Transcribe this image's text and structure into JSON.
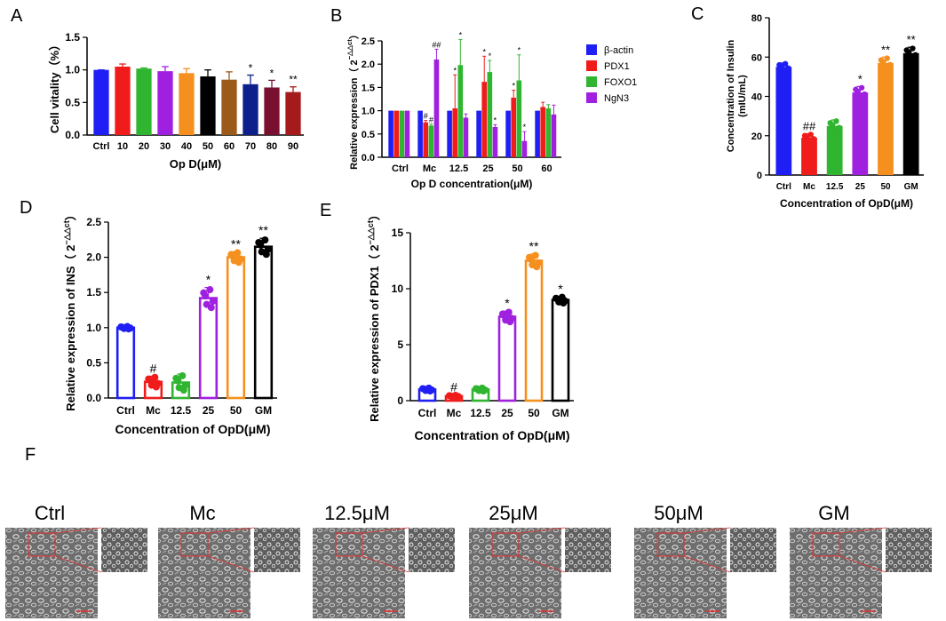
{
  "panel_letters": {
    "A": "A",
    "B": "B",
    "C": "C",
    "D": "D",
    "E": "E",
    "F": "F"
  },
  "colors": {
    "blue": "#1f1ff5",
    "red": "#f01c1c",
    "green": "#2fb52f",
    "purple": "#a020e0",
    "black": "#000000",
    "brown": "#9b5a1a",
    "navy": "#0d1f8a",
    "maroon": "#7a1030",
    "darkred": "#a51a1a",
    "orange": "#f5901e",
    "axis": "#000000"
  },
  "chart_data": [
    {
      "id": "A",
      "type": "bar",
      "title": "",
      "xlabel": "Op D(μM)",
      "ylabel": "Cell vitality（%）",
      "ylim": [
        0,
        1.5
      ],
      "yticks": [
        "0.0",
        "0.5",
        "1.0",
        "1.5"
      ],
      "categories": [
        "Ctrl",
        "10",
        "20",
        "30",
        "40",
        "50",
        "60",
        "70",
        "80",
        "90"
      ],
      "values": [
        1.0,
        1.05,
        1.02,
        0.98,
        0.95,
        0.9,
        0.85,
        0.78,
        0.73,
        0.66
      ],
      "errors": [
        0.0,
        0.04,
        0.01,
        0.07,
        0.07,
        0.1,
        0.12,
        0.14,
        0.11,
        0.08
      ],
      "bar_colors": [
        "blue",
        "red",
        "green",
        "purple",
        "orange",
        "black",
        "brown",
        "navy",
        "maroon",
        "darkred"
      ],
      "annotations": [
        "",
        "",
        "",
        "",
        "",
        "",
        "",
        "*",
        "*",
        "**"
      ]
    },
    {
      "id": "B",
      "type": "bar",
      "title": "",
      "xlabel": "Op D concentration(μM)",
      "ylabel": "Relative expression（2⁻△△ct）",
      "ylabel_main": "Relative expression（ 2",
      "ylabel_sup": "−△△ct",
      "ylabel_close": "）",
      "ylim": [
        0,
        2.5
      ],
      "yticks": [
        "0.0",
        "0.5",
        "1.0",
        "1.5",
        "2.0",
        "2.5"
      ],
      "categories": [
        "Ctrl",
        "Mc",
        "12.5",
        "25",
        "50",
        "60"
      ],
      "series": [
        {
          "name": "β-actin",
          "color": "blue",
          "values": [
            1,
            1,
            1,
            1,
            1,
            1
          ],
          "errors": [
            0,
            0,
            0,
            0,
            0,
            0
          ],
          "annotations": [
            "",
            "",
            "",
            "",
            "",
            ""
          ]
        },
        {
          "name": "PDX1",
          "color": "red",
          "values": [
            1,
            0.75,
            1.05,
            1.62,
            1.28,
            1.08
          ],
          "errors": [
            0,
            0.04,
            0.72,
            0.55,
            0.16,
            0.1
          ],
          "annotations": [
            "",
            "#",
            "*",
            "*",
            "*",
            ""
          ]
        },
        {
          "name": "FOXO1",
          "color": "green",
          "values": [
            1,
            0.68,
            1.98,
            1.83,
            1.65,
            1.05
          ],
          "errors": [
            0,
            0.03,
            0.55,
            0.25,
            0.55,
            0.08
          ],
          "annotations": [
            "",
            "#",
            "*",
            "*",
            "*",
            ""
          ]
        },
        {
          "name": "NgN3",
          "color": "purple",
          "values": [
            1,
            2.1,
            0.85,
            0.65,
            0.35,
            0.92
          ],
          "errors": [
            0,
            0.22,
            0.08,
            0.05,
            0.2,
            0.2
          ],
          "annotations": [
            "",
            "##",
            "",
            "*",
            "*",
            ""
          ]
        }
      ]
    },
    {
      "id": "C",
      "type": "bar",
      "title": "",
      "xlabel": "Concentration of OpD(μM)",
      "ylabel": "Concentration of Insulin\n(mIU/mL)",
      "ylabel_line1": "Concentration of Insulin",
      "ylabel_line2": "(mIU/mL)",
      "ylim": [
        0,
        80
      ],
      "yticks": [
        "0",
        "20",
        "40",
        "60",
        "80"
      ],
      "categories": [
        "Ctrl",
        "Mc",
        "12.5",
        "25",
        "50",
        "GM"
      ],
      "values": [
        55,
        19,
        25,
        42,
        57,
        62
      ],
      "errors": [
        2,
        2,
        3,
        3,
        3,
        3
      ],
      "bar_colors": [
        "blue",
        "red",
        "green",
        "purple",
        "orange",
        "black"
      ],
      "annotations": [
        "",
        "##",
        "",
        "*",
        "**",
        "**"
      ]
    },
    {
      "id": "D",
      "type": "bar",
      "title": "",
      "xlabel": "Concentration of OpD(μM)",
      "ylabel": "Relative expression of INS（2⁻△△ct）",
      "ylabel_main": "Relative expression of INS（ 2",
      "ylabel_sup": "−△△ct",
      "ylabel_close": "）",
      "ylim": [
        0,
        2.5
      ],
      "yticks": [
        "0.0",
        "0.5",
        "1.0",
        "1.5",
        "2.0",
        "2.5"
      ],
      "categories": [
        "Ctrl",
        "Mc",
        "12.5",
        "25",
        "50",
        "GM"
      ],
      "values": [
        1.0,
        0.23,
        0.22,
        1.42,
        2.0,
        2.15
      ],
      "errors": [
        0.02,
        0.08,
        0.12,
        0.15,
        0.08,
        0.12
      ],
      "bar_colors": [
        "blue",
        "red",
        "green",
        "purple",
        "orange",
        "black"
      ],
      "annotations": [
        "",
        "#",
        "",
        "*",
        "**",
        "**"
      ]
    },
    {
      "id": "E",
      "type": "bar",
      "title": "",
      "xlabel": "Concentration of OpD(μM)",
      "ylabel": "Relative expression of PDX1（2⁻△△ct）",
      "ylabel_main": "Relative expression of PDX1（ 2",
      "ylabel_sup": "−△△ct",
      "ylabel_close": "）",
      "ylim": [
        0,
        15
      ],
      "yticks": [
        "0",
        "5",
        "10",
        "15"
      ],
      "categories": [
        "Ctrl",
        "Mc",
        "12.5",
        "25",
        "50",
        "GM"
      ],
      "values": [
        1.0,
        0.4,
        1.0,
        7.5,
        12.5,
        9.0
      ],
      "errors": [
        0.15,
        0.1,
        0.15,
        0.5,
        0.6,
        0.3
      ],
      "bar_colors": [
        "blue",
        "red",
        "green",
        "purple",
        "orange",
        "black"
      ],
      "annotations": [
        "",
        "#",
        "",
        "*",
        "**",
        "*"
      ]
    }
  ],
  "micrographs": [
    {
      "label": "Ctrl"
    },
    {
      "label": "Mc"
    },
    {
      "label": "12.5μM"
    },
    {
      "label": "25μM"
    },
    {
      "label": "50μM"
    },
    {
      "label": "GM"
    }
  ]
}
